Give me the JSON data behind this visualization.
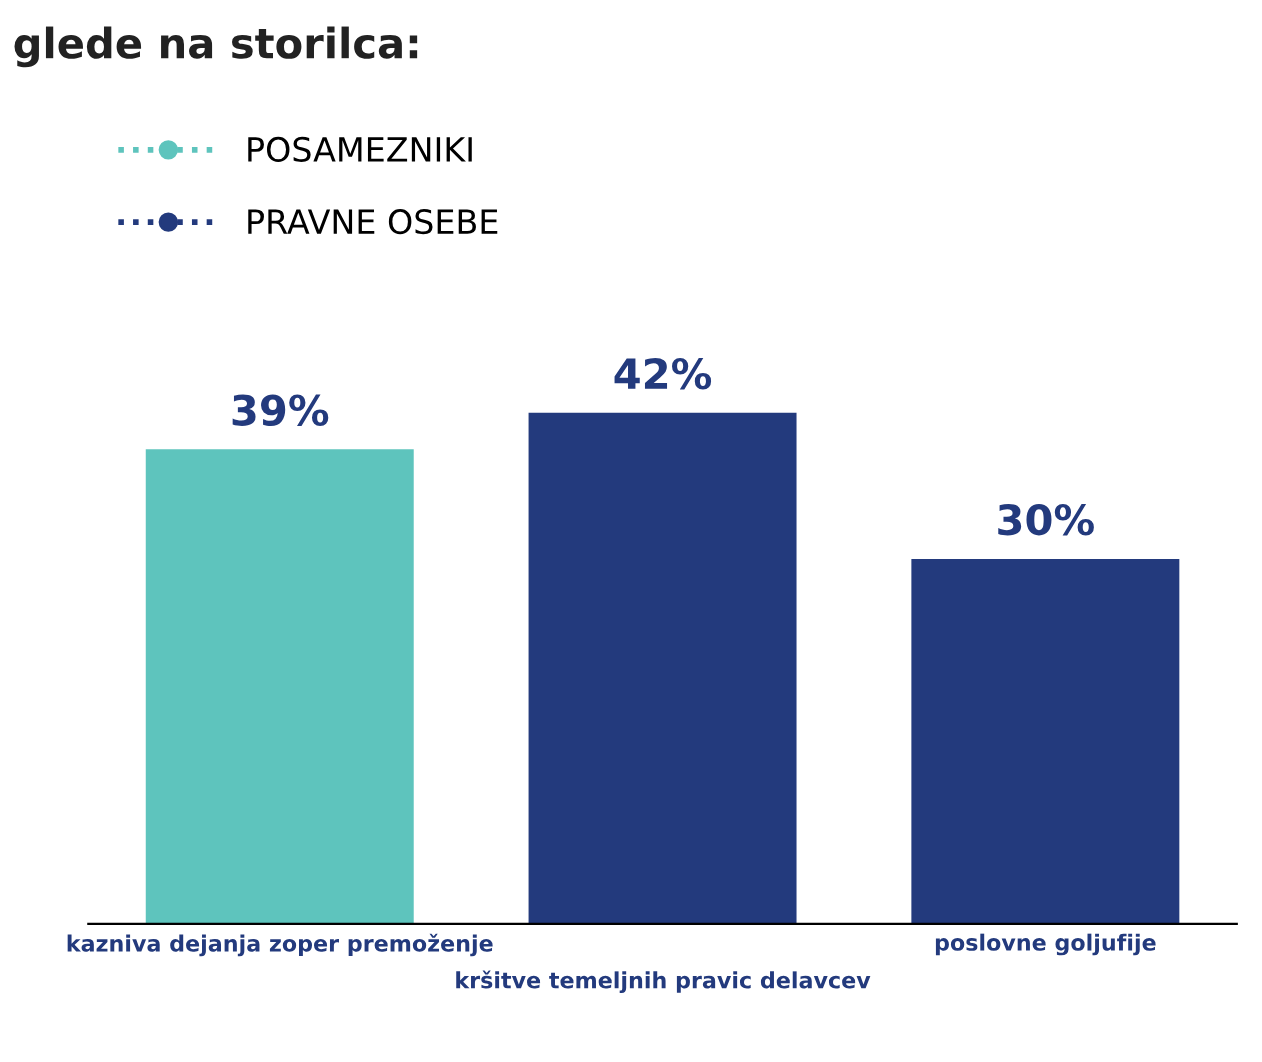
{
  "chart_data": {
    "type": "bar",
    "title": "glede na storilca:",
    "categories": [
      "kazniva dejanja zoper premoženje",
      "kršitve temeljnih pravic delavcev",
      "poslovne goljufije"
    ],
    "series": [
      {
        "name": "POSAMEZNIKI",
        "color": "#5ec4bd",
        "values": [
          39,
          null,
          null
        ],
        "value_labels": [
          "39%",
          null,
          null
        ]
      },
      {
        "name": "PRAVNE OSEBE",
        "color": "#233a7d",
        "values": [
          null,
          42,
          30
        ],
        "value_labels": [
          null,
          "42%",
          "30%"
        ]
      }
    ],
    "legend": "upper left",
    "marker": "circle",
    "line_style": "dotted"
  }
}
